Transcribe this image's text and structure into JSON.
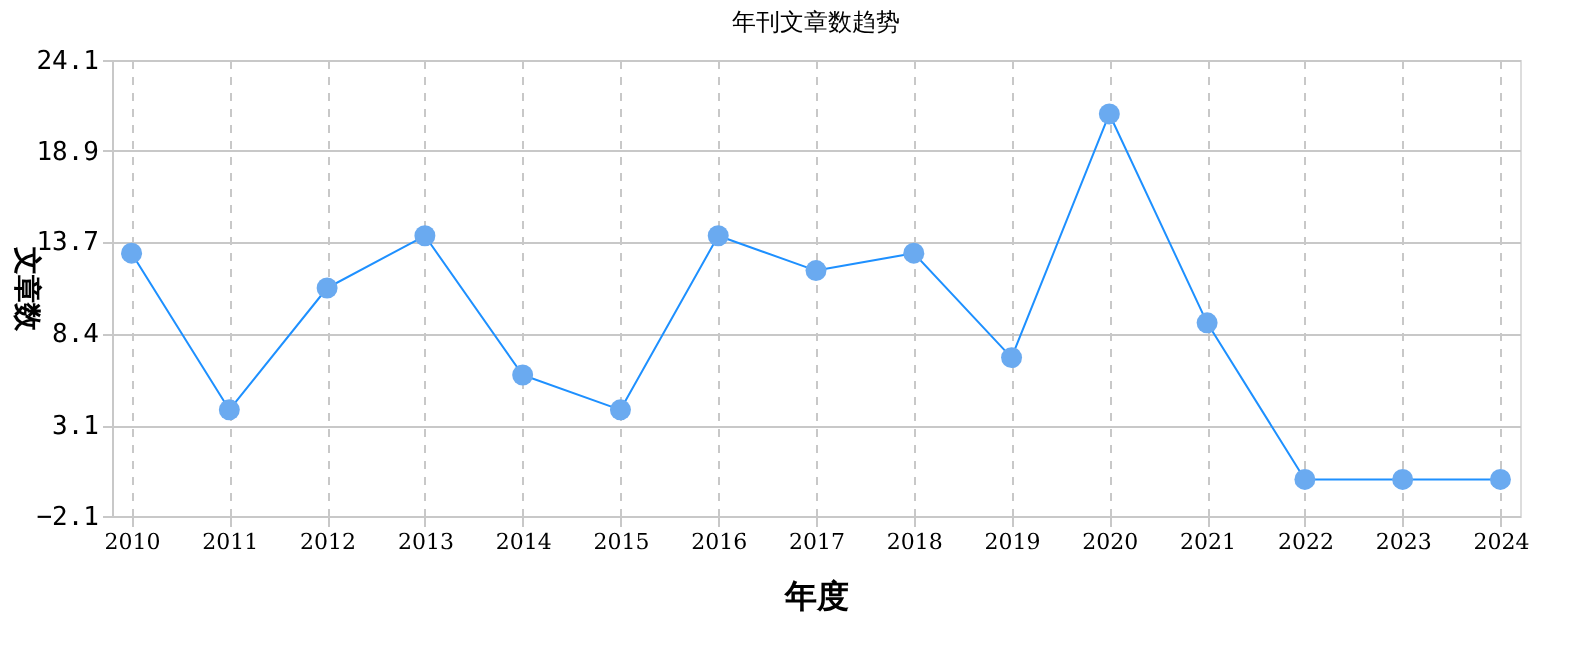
{
  "chart_data": {
    "type": "line",
    "title": "年刊文章数趋势",
    "xlabel": "年度",
    "ylabel": "文章数",
    "categories": [
      "2010",
      "2011",
      "2012",
      "2013",
      "2014",
      "2015",
      "2016",
      "2017",
      "2018",
      "2019",
      "2020",
      "2021",
      "2022",
      "2023",
      "2024"
    ],
    "series": [
      {
        "color": "#1e90ff",
        "values": [
          13,
          4,
          11,
          14,
          6,
          4,
          14,
          12,
          13,
          7,
          21,
          9,
          0,
          0,
          0
        ]
      }
    ],
    "ylim": [
      -2.1,
      24.1
    ],
    "yticks": [
      -2.1,
      3.1,
      8.4,
      13.7,
      18.9,
      24.1
    ],
    "grid": true,
    "marker": "circle",
    "line_style": "solid"
  }
}
